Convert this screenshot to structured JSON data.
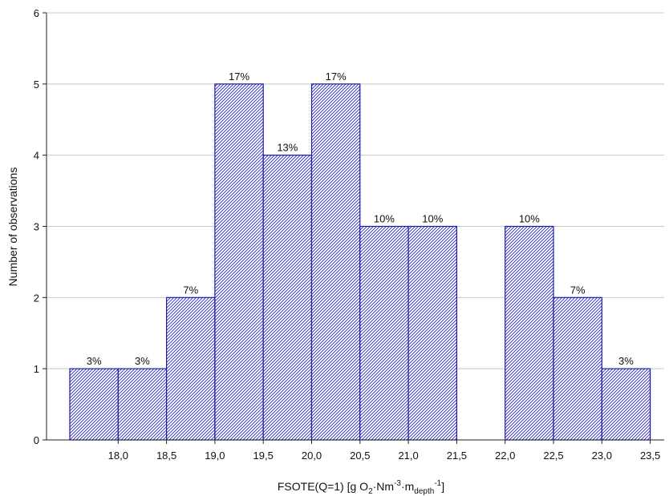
{
  "chart_data": {
    "type": "bar",
    "title": "",
    "xlabel": {
      "prefix": "FSOTE(Q=1) [g O",
      "sub1": "2",
      "mid": "·Nm",
      "sup1": "-3",
      "mid2": "·m",
      "sub2": "depth",
      "sup2": "-1",
      "suffix": "]"
    },
    "ylabel": "Number of observations",
    "ylim": [
      0,
      6
    ],
    "y_ticks": [
      "0",
      "1",
      "2",
      "3",
      "4",
      "5",
      "6"
    ],
    "xlim": [
      17.5,
      23.5
    ],
    "x_ticks": [
      "18,0",
      "18,5",
      "19,0",
      "19,5",
      "20,0",
      "20,5",
      "21,0",
      "21,5",
      "22,0",
      "22,5",
      "23,0",
      "23,5"
    ],
    "grid": "horizontal",
    "bar_style": "hatched blue",
    "bars": [
      {
        "from": 17.5,
        "to": 18.0,
        "value": 1,
        "label": "3%"
      },
      {
        "from": 18.0,
        "to": 18.5,
        "value": 1,
        "label": "3%"
      },
      {
        "from": 18.5,
        "to": 19.0,
        "value": 2,
        "label": "7%"
      },
      {
        "from": 19.0,
        "to": 19.5,
        "value": 5,
        "label": "17%"
      },
      {
        "from": 19.5,
        "to": 20.0,
        "value": 4,
        "label": "13%"
      },
      {
        "from": 20.0,
        "to": 20.5,
        "value": 5,
        "label": "17%"
      },
      {
        "from": 20.5,
        "to": 21.0,
        "value": 3,
        "label": "10%"
      },
      {
        "from": 21.0,
        "to": 21.5,
        "value": 3,
        "label": "10%"
      },
      {
        "from": 22.0,
        "to": 22.5,
        "value": 3,
        "label": "10%"
      },
      {
        "from": 22.5,
        "to": 23.0,
        "value": 2,
        "label": "7%"
      },
      {
        "from": 23.0,
        "to": 23.5,
        "value": 1,
        "label": "3%"
      }
    ]
  },
  "colors": {
    "bar_stroke": "#1a1aa8",
    "bar_hatch": "#2a2ab4",
    "grid": "#c8c8c8",
    "axis": "#222222"
  }
}
